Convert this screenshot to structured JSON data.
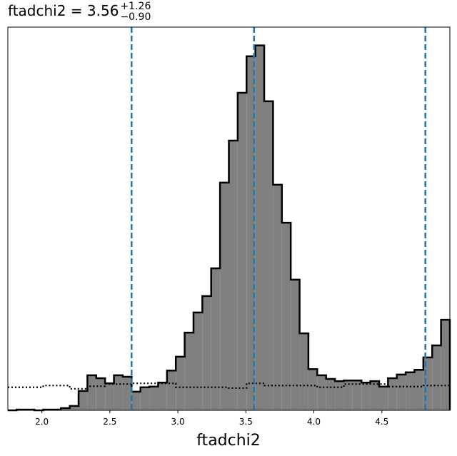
{
  "chart_data": {
    "type": "histogram",
    "title": {
      "main": "ftadchi2 = 3.56",
      "upper": "+1.26",
      "lower": "−0.90"
    },
    "xlabel": "ftadchi2",
    "bins": [
      1.75,
      1.815,
      1.88,
      1.945,
      2.01,
      2.075,
      2.14,
      2.205,
      2.27,
      2.335,
      2.4,
      2.465,
      2.53,
      2.595,
      2.66,
      2.725,
      2.79,
      2.855,
      2.92,
      2.985,
      3.05,
      3.115,
      3.18,
      3.245,
      3.31,
      3.375,
      3.44,
      3.505,
      3.57,
      3.635,
      3.7,
      3.765,
      3.83,
      3.895,
      3.96,
      4.025,
      4.09,
      4.155,
      4.22,
      4.285,
      4.35,
      4.415,
      4.48,
      4.545,
      4.61,
      4.675,
      4.74,
      4.805,
      4.87,
      4.935,
      5.0
    ],
    "series": [
      {
        "color": "#808080",
        "edgecolor": "#000000",
        "style": "filled",
        "values": [
          0,
          0.002,
          0.002,
          0,
          0.002,
          0.002,
          0.006,
          0.012,
          0.053,
          0.096,
          0.088,
          0.074,
          0.096,
          0.092,
          0.051,
          0.063,
          0.065,
          0.076,
          0.109,
          0.147,
          0.213,
          0.268,
          0.313,
          0.389,
          0.624,
          0.739,
          0.87,
          0.97,
          1.0,
          0.847,
          0.618,
          0.514,
          0.358,
          0.211,
          0.113,
          0.096,
          0.086,
          0.08,
          0.082,
          0.082,
          0.076,
          0.08,
          0.065,
          0.088,
          0.098,
          0.104,
          0.111,
          0.145,
          0.178,
          0.248
        ]
      },
      {
        "color": "#000000",
        "style": "dotted",
        "values": [
          0.063,
          0.063,
          0.063,
          0.063,
          0.068,
          0.068,
          0.068,
          0.059,
          0.059,
          0.066,
          0.066,
          0.072,
          0.072,
          0.072,
          0.074,
          0.074,
          0.074,
          0.074,
          0.074,
          0.063,
          0.063,
          0.063,
          0.063,
          0.063,
          0.063,
          0.061,
          0.061,
          0.074,
          0.074,
          0.068,
          0.068,
          0.068,
          0.068,
          0.068,
          0.068,
          0.063,
          0.063,
          0.063,
          0.072,
          0.072,
          0.072,
          0.072,
          0.072,
          0.065,
          0.065,
          0.065,
          0.065,
          0.068,
          0.068,
          0.068
        ]
      }
    ],
    "vlines": [
      2.66,
      3.56,
      4.82
    ],
    "vline_color": "#1f77b4",
    "xlim": [
      1.75,
      5.0
    ],
    "ylim": [
      0,
      1.05
    ],
    "xticks": [
      {
        "value": 2,
        "label": "2.0"
      },
      {
        "value": 2.5,
        "label": "2.5"
      },
      {
        "value": 3,
        "label": "3.0"
      },
      {
        "value": 3.5,
        "label": "3.5"
      },
      {
        "value": 4,
        "label": "4.0"
      },
      {
        "value": 4.5,
        "label": "4.5"
      }
    ]
  }
}
